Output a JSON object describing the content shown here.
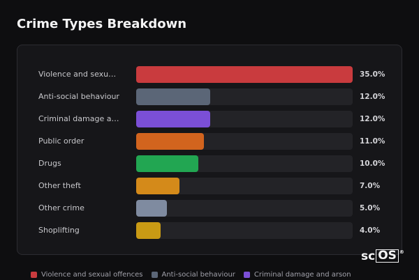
{
  "header": {
    "title": "Crime Types Breakdown"
  },
  "chart_data": {
    "type": "bar",
    "orientation": "horizontal",
    "categories": [
      "Violence and sexual offences",
      "Anti-social behaviour",
      "Criminal damage and arson",
      "Public order",
      "Drugs",
      "Other theft",
      "Other crime",
      "Shoplifting"
    ],
    "values": [
      35,
      12,
      12,
      11,
      10,
      7,
      5,
      4
    ],
    "value_labels": [
      "35.0%",
      "12.0%",
      "12.0%",
      "11.0%",
      "10.0%",
      "7.0%",
      "5.0%",
      "4.0%"
    ],
    "colors": [
      "#c93b3e",
      "#5b6677",
      "#7b4fd6",
      "#d2641e",
      "#22a652",
      "#d48a1a",
      "#7f8ba0",
      "#c99a14"
    ]
  },
  "brand": {
    "prefix": "sc",
    "boxed": "OS",
    "mark": "®"
  }
}
